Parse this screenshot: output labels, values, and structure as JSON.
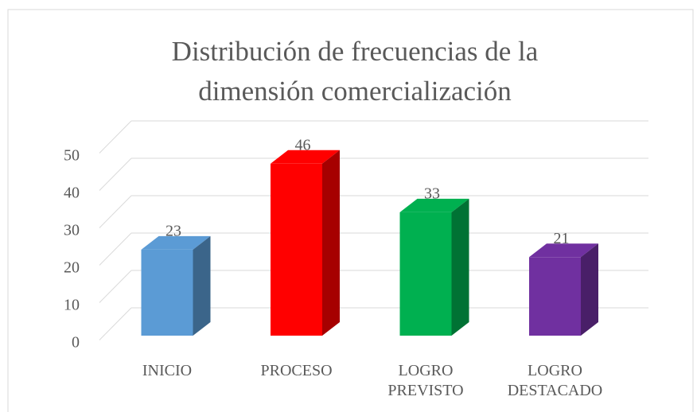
{
  "chart_data": {
    "type": "bar3d",
    "title": "Distribución de frecuencias de la dimensión comercialización",
    "categories": [
      "INICIO",
      "PROCESO",
      "LOGRO PREVISTO",
      "LOGRO DESTACADO"
    ],
    "values": [
      23,
      46,
      33,
      21
    ],
    "colors": [
      "#5b9bd5",
      "#ff0000",
      "#00b050",
      "#7030a0"
    ],
    "ylim": [
      0,
      50
    ],
    "yticks": [
      0,
      10,
      20,
      30,
      40,
      50
    ],
    "grid": true
  }
}
